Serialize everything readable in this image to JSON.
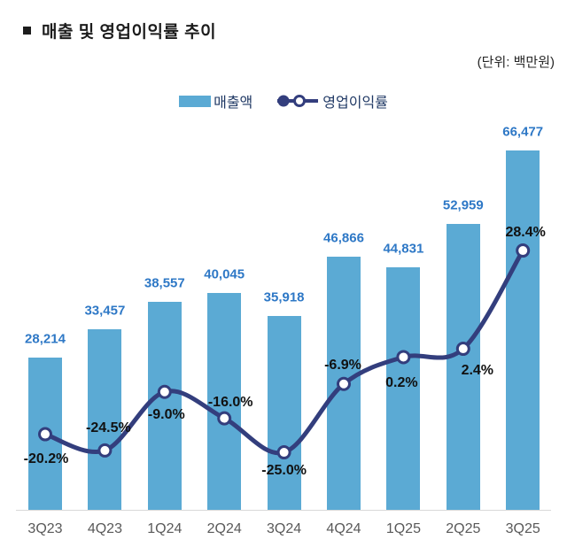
{
  "title": {
    "bullet": "▪",
    "text": "매출 및 영업이익률 추이"
  },
  "unit_label": "(단위: 백만원)",
  "legend": {
    "revenue_label": "매출액",
    "margin_label": "영업이익률"
  },
  "colors": {
    "bar": "#5BAAD4",
    "line": "#333E7D",
    "marker_fill": "#ffffff",
    "value_label": "#2E78C6",
    "percent_label": "#111111",
    "category_label": "#595959",
    "axis": "#d9d9d9",
    "legend_text": "#1F3864",
    "title_text": "#1c1c1c"
  },
  "chart_data": {
    "type": "bar+line",
    "title": "매출 및 영업이익률 추이",
    "unit": "백만원",
    "grid": false,
    "legend_position": "top-center",
    "categories": [
      "3Q23",
      "4Q23",
      "1Q24",
      "2Q24",
      "3Q24",
      "4Q24",
      "1Q25",
      "2Q25",
      "3Q25"
    ],
    "series": [
      {
        "name": "매출액",
        "type": "bar",
        "values": [
          28214,
          33457,
          38557,
          40045,
          35918,
          46866,
          44831,
          52959,
          66477
        ],
        "labels": [
          "28,214",
          "33,457",
          "38,557",
          "40,045",
          "35,918",
          "46,866",
          "44,831",
          "52,959",
          "66,477"
        ]
      },
      {
        "name": "영업이익률",
        "type": "line",
        "values": [
          -20.2,
          -24.5,
          -9.0,
          -16.0,
          -25.0,
          -6.9,
          0.2,
          2.4,
          28.4
        ],
        "labels": [
          "-20.2%",
          "-24.5%",
          "-9.0%",
          "-16.0%",
          "-25.0%",
          "-6.9%",
          "0.2%",
          "2.4%",
          "28.4%"
        ],
        "label_offsets": [
          [
            1,
            28
          ],
          [
            4,
            -25
          ],
          [
            2,
            26
          ],
          [
            7,
            -18
          ],
          [
            0,
            21
          ],
          [
            -1,
            -21
          ],
          [
            -2,
            30
          ],
          [
            16,
            25
          ],
          [
            3,
            -20
          ]
        ]
      }
    ]
  }
}
